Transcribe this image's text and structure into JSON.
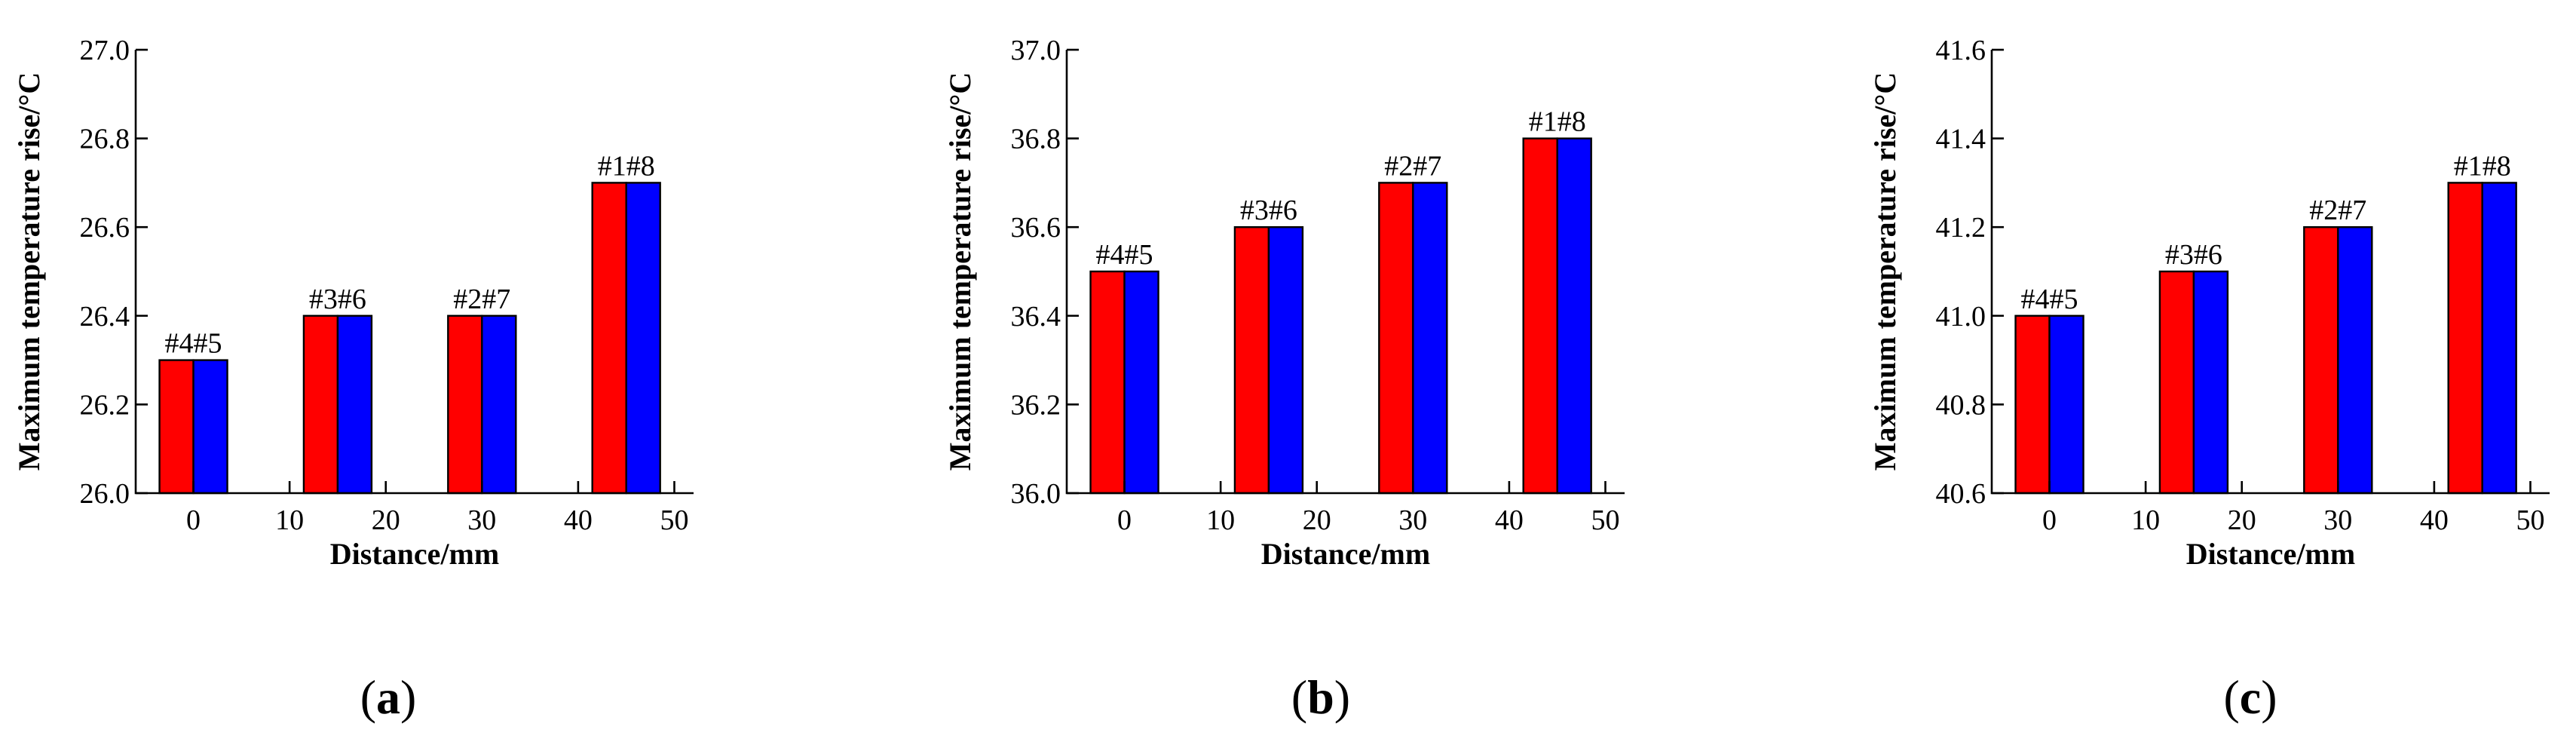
{
  "chart_data": [
    {
      "type": "bar",
      "caption_letter": "a",
      "xlabel": "Distance/mm",
      "ylabel": "Maximum temperature rise/°C",
      "ylim": [
        26.0,
        27.0
      ],
      "yticks": [
        "26.0",
        "26.2",
        "26.4",
        "26.6",
        "26.8",
        "27.0"
      ],
      "xlim": [
        -6,
        52
      ],
      "xticks": [
        "0",
        "10",
        "20",
        "30",
        "40",
        "50"
      ],
      "series_colors": [
        "#ff0000",
        "#0000ff"
      ],
      "groups": [
        {
          "label": "#4#5",
          "x": 0,
          "values": [
            26.3,
            26.3
          ]
        },
        {
          "label": "#3#6",
          "x": 15,
          "values": [
            26.4,
            26.4
          ]
        },
        {
          "label": "#2#7",
          "x": 30,
          "values": [
            26.4,
            26.4
          ]
        },
        {
          "label": "#1#8",
          "x": 45,
          "values": [
            26.7,
            26.7
          ]
        }
      ]
    },
    {
      "type": "bar",
      "caption_letter": "b",
      "xlabel": "Distance/mm",
      "ylabel": "Maximum temperature rise/°C",
      "ylim": [
        36.0,
        37.0
      ],
      "yticks": [
        "36.0",
        "36.2",
        "36.4",
        "36.6",
        "36.8",
        "37.0"
      ],
      "xlim": [
        -6,
        52
      ],
      "xticks": [
        "0",
        "10",
        "20",
        "30",
        "40",
        "50"
      ],
      "series_colors": [
        "#ff0000",
        "#0000ff"
      ],
      "groups": [
        {
          "label": "#4#5",
          "x": 0,
          "values": [
            36.5,
            36.5
          ]
        },
        {
          "label": "#3#6",
          "x": 15,
          "values": [
            36.6,
            36.6
          ]
        },
        {
          "label": "#2#7",
          "x": 30,
          "values": [
            36.7,
            36.7
          ]
        },
        {
          "label": "#1#8",
          "x": 45,
          "values": [
            36.8,
            36.8
          ]
        }
      ]
    },
    {
      "type": "bar",
      "caption_letter": "c",
      "xlabel": "Distance/mm",
      "ylabel": "Maximum temperature rise/°C",
      "ylim": [
        40.6,
        41.6
      ],
      "yticks": [
        "40.6",
        "40.8",
        "41.0",
        "41.2",
        "41.4",
        "41.6"
      ],
      "xlim": [
        -6,
        52
      ],
      "xticks": [
        "0",
        "10",
        "20",
        "30",
        "40",
        "50"
      ],
      "series_colors": [
        "#ff0000",
        "#0000ff"
      ],
      "groups": [
        {
          "label": "#4#5",
          "x": 0,
          "values": [
            41.0,
            41.0
          ]
        },
        {
          "label": "#3#6",
          "x": 15,
          "values": [
            41.1,
            41.1
          ]
        },
        {
          "label": "#2#7",
          "x": 30,
          "values": [
            41.2,
            41.2
          ]
        },
        {
          "label": "#1#8",
          "x": 45,
          "values": [
            41.3,
            41.3
          ]
        }
      ]
    }
  ]
}
